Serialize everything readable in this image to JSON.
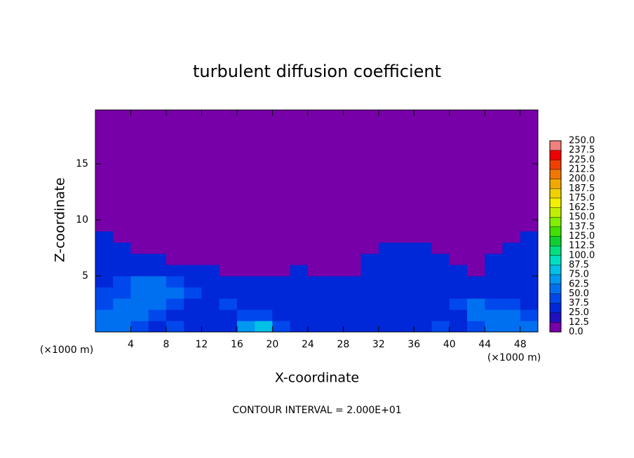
{
  "chart_data": {
    "type": "heatmap",
    "title": "turbulent diffusion coefficient",
    "xlabel": "X-coordinate",
    "ylabel": "Z-coordinate",
    "x_unit": "(×1000 m)",
    "annotation": "CONTOUR INTERVAL = 2.000E+01",
    "xlim": [
      0,
      50
    ],
    "ylim": [
      0,
      19.8
    ],
    "xticks": [
      4,
      8,
      12,
      16,
      20,
      24,
      28,
      32,
      36,
      40,
      44,
      48
    ],
    "yticks": [
      5,
      10,
      15
    ],
    "colorbar": {
      "levels": [
        {
          "value": 0,
          "label": "0.0"
        },
        {
          "value": 12.5,
          "label": "12.5"
        },
        {
          "value": 25,
          "label": "25.0"
        },
        {
          "value": 37.5,
          "label": "37.5"
        },
        {
          "value": 50,
          "label": "50.0"
        },
        {
          "value": 62.5,
          "label": "62.5"
        },
        {
          "value": 75,
          "label": "75.0"
        },
        {
          "value": 87.5,
          "label": "87.5"
        },
        {
          "value": 100,
          "label": "100.0"
        },
        {
          "value": 112.5,
          "label": "112.5"
        },
        {
          "value": 125,
          "label": "125.0"
        },
        {
          "value": 137.5,
          "label": "137.5"
        },
        {
          "value": 150,
          "label": "150.0"
        },
        {
          "value": 162.5,
          "label": "162.5"
        },
        {
          "value": 175,
          "label": "175.0"
        },
        {
          "value": 187.5,
          "label": "187.5"
        },
        {
          "value": 200,
          "label": "200.0"
        },
        {
          "value": 212.5,
          "label": "212.5"
        },
        {
          "value": 225,
          "label": "225.0"
        },
        {
          "value": 237.5,
          "label": "237.5"
        },
        {
          "value": 250,
          "label": "250.0"
        }
      ],
      "colors": [
        "#7800a8",
        "#2010c0",
        "#0028d8",
        "#0048ec",
        "#0070f0",
        "#0098f0",
        "#00c0e8",
        "#00e0c0",
        "#00e080",
        "#10d030",
        "#40e000",
        "#80f000",
        "#c0f000",
        "#f0f000",
        "#f0d000",
        "#f0a800",
        "#f07800",
        "#f04000",
        "#f00000",
        "#f08080"
      ]
    },
    "field": {
      "x": [
        1,
        3,
        5,
        7,
        9,
        11,
        13,
        15,
        17,
        19,
        21,
        23,
        25,
        27,
        29,
        31,
        33,
        35,
        37,
        39,
        41,
        43,
        45,
        47,
        49
      ],
      "z": [
        0.5,
        1.5,
        2.5,
        3.5,
        4.5,
        5.5,
        6.5,
        7.5,
        8.5,
        9.5
      ],
      "values": [
        [
          55,
          60,
          45,
          30,
          40,
          35,
          30,
          30,
          70,
          80,
          40,
          30,
          30,
          30,
          30,
          30,
          30,
          30,
          35,
          40,
          30,
          45,
          60,
          55,
          50
        ],
        [
          50,
          55,
          60,
          40,
          35,
          30,
          30,
          35,
          45,
          40,
          30,
          30,
          25,
          30,
          30,
          30,
          30,
          35,
          30,
          30,
          35,
          55,
          60,
          50,
          45
        ],
        [
          45,
          50,
          55,
          60,
          45,
          30,
          35,
          40,
          30,
          30,
          30,
          25,
          30,
          30,
          30,
          30,
          30,
          30,
          30,
          30,
          40,
          50,
          45,
          40,
          35
        ],
        [
          40,
          45,
          50,
          55,
          55,
          40,
          30,
          30,
          30,
          35,
          30,
          30,
          30,
          30,
          30,
          30,
          35,
          30,
          30,
          30,
          30,
          35,
          30,
          30,
          30
        ],
        [
          35,
          40,
          50,
          55,
          45,
          35,
          30,
          30,
          30,
          30,
          30,
          25,
          30,
          30,
          30,
          30,
          30,
          30,
          30,
          25,
          30,
          30,
          30,
          30,
          30
        ],
        [
          30,
          30,
          35,
          30,
          30,
          25,
          30,
          5,
          5,
          5,
          5,
          30,
          5,
          5,
          5,
          30,
          30,
          30,
          30,
          30,
          30,
          5,
          30,
          30,
          30
        ],
        [
          30,
          30,
          30,
          30,
          5,
          5,
          5,
          5,
          5,
          5,
          5,
          5,
          5,
          5,
          5,
          30,
          30,
          30,
          30,
          30,
          5,
          5,
          30,
          30,
          30
        ],
        [
          30,
          30,
          5,
          5,
          5,
          5,
          5,
          5,
          5,
          5,
          5,
          5,
          5,
          5,
          5,
          5,
          30,
          30,
          30,
          5,
          5,
          5,
          5,
          30,
          30
        ],
        [
          30,
          5,
          5,
          5,
          5,
          5,
          5,
          5,
          5,
          5,
          5,
          5,
          5,
          5,
          5,
          5,
          5,
          5,
          5,
          5,
          5,
          5,
          5,
          5,
          30
        ],
        [
          5,
          5,
          5,
          5,
          5,
          5,
          5,
          5,
          5,
          5,
          5,
          5,
          5,
          5,
          5,
          5,
          5,
          5,
          5,
          5,
          5,
          5,
          5,
          5,
          5
        ]
      ]
    }
  }
}
